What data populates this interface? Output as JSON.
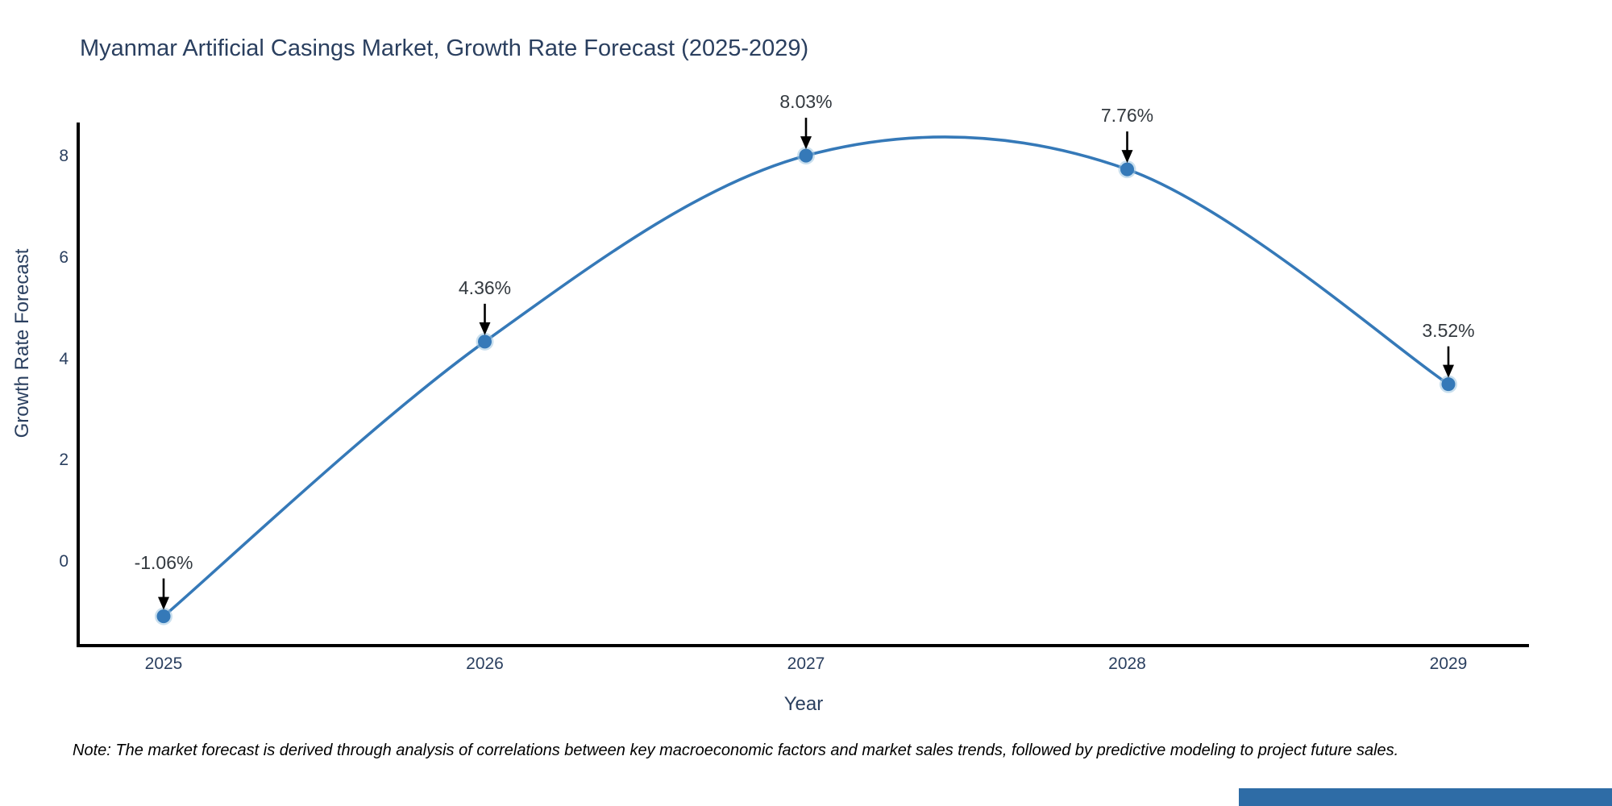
{
  "title": "Myanmar Artificial Casings Market, Growth Rate Forecast (2025-2029)",
  "note": "Note: The market forecast is derived through analysis of correlations between key macroeconomic factors and market sales trends, followed by predictive modeling to project future sales.",
  "chart_data": {
    "type": "line",
    "line_shape": "spline",
    "title": "Myanmar Artificial Casings Market, Growth Rate Forecast (2025-2029)",
    "xlabel": "Year",
    "ylabel": "Growth Rate Forecast",
    "categories": [
      "2025",
      "2026",
      "2027",
      "2028",
      "2029"
    ],
    "values": [
      -1.06,
      4.36,
      8.03,
      7.76,
      3.52
    ],
    "point_labels": [
      "-1.06%",
      "4.36%",
      "8.03%",
      "7.76%",
      "3.52%"
    ],
    "yticks": [
      0,
      2,
      4,
      6,
      8
    ],
    "ylim": [
      -1.64,
      8.68
    ],
    "grid": false,
    "legend": "none",
    "colors": {
      "line": "#3579b8",
      "marker": "#3579b8",
      "marker_halo": "#9cc4e0",
      "axis_line": "#000000",
      "axis_text": "#2a3f5f",
      "annotation_text": "#33393f",
      "arrow": "#000000"
    }
  },
  "footer_bar": {
    "color": "#2e6ca6"
  }
}
